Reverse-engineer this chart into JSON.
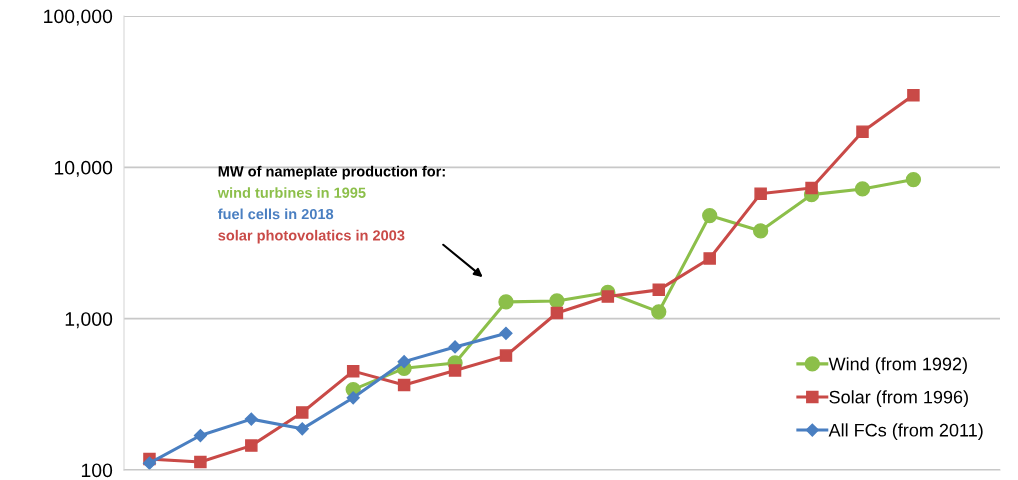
{
  "chart_data": {
    "type": "line",
    "categories": [
      null,
      null,
      null,
      null,
      null,
      null,
      null,
      null,
      null,
      null,
      null,
      null,
      null,
      null,
      null,
      null,
      null
    ],
    "series": [
      {
        "name": "Wind (from 1992)",
        "color": "#8cbf4a",
        "marker": "circle",
        "values": [
          null,
          null,
          null,
          null,
          340,
          470,
          510,
          1290,
          1310,
          1490,
          1110,
          4800,
          3800,
          6600,
          7200,
          8300,
          null
        ]
      },
      {
        "name": "Solar (from 1996)",
        "color": "#c94a47",
        "marker": "square",
        "values": [
          118,
          113,
          145,
          240,
          450,
          365,
          455,
          570,
          1090,
          1400,
          1550,
          2500,
          6700,
          7300,
          17200,
          30000,
          null
        ]
      },
      {
        "name": "All FCs (from 2011)",
        "color": "#4a7fc1",
        "marker": "diamond",
        "values": [
          111,
          169,
          217,
          187,
          300,
          520,
          650,
          800,
          null,
          null,
          null,
          null,
          null,
          null,
          null,
          null,
          null
        ]
      }
    ],
    "log": true,
    "ylim": [
      100,
      100000
    ],
    "yticks": [
      {
        "value": 100,
        "label": "100"
      },
      {
        "value": 1000,
        "label": "1,000"
      },
      {
        "value": 10000,
        "label": "10,000"
      },
      {
        "value": 100000,
        "label": "100,000"
      }
    ],
    "grid": "y",
    "legend": "bottom right",
    "tick_labels": "y",
    "annotations": [
      "MW of nameplate production for:",
      "wind turbines in 1995",
      "fuel cells in 2018",
      "solar photovolatics in 2003"
    ]
  }
}
